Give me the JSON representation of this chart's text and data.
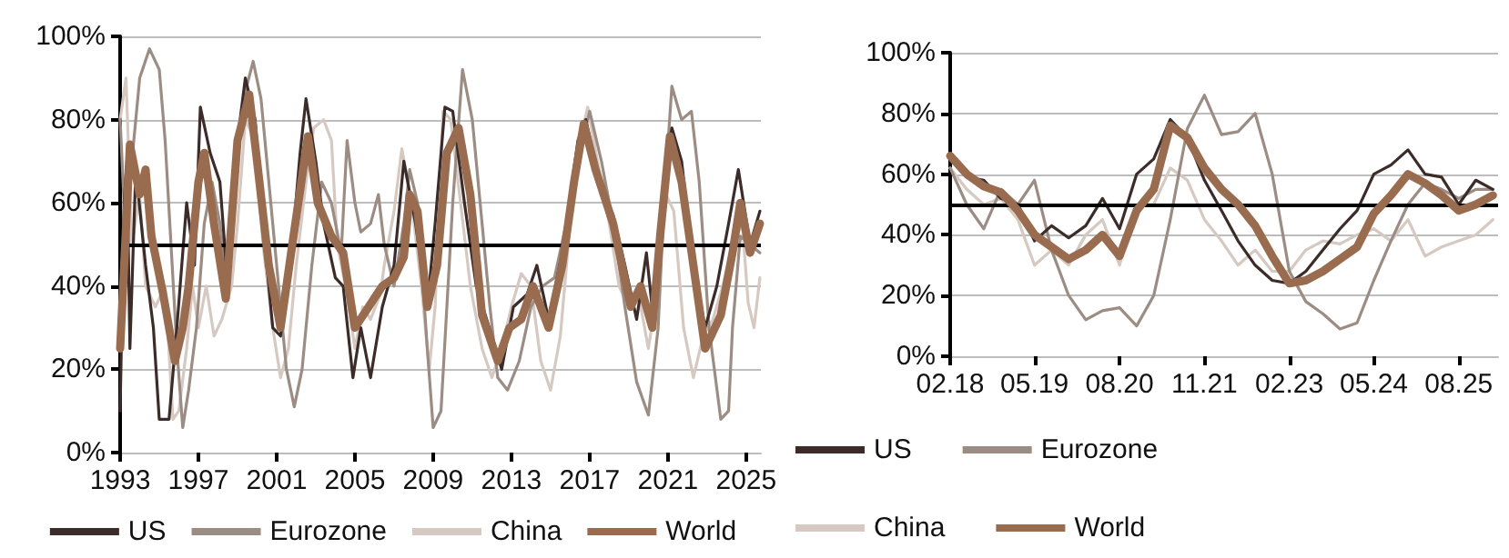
{
  "chart_data": [
    {
      "type": "line",
      "xlim": [
        1993,
        2025.75
      ],
      "xticks": [
        1993,
        1997,
        2001,
        2005,
        2009,
        2013,
        2017,
        2021,
        2025
      ],
      "ylim": [
        0,
        100
      ],
      "yticks": [
        {
          "value": 0,
          "label": "0%"
        },
        {
          "value": 20,
          "label": "20%"
        },
        {
          "value": 40,
          "label": "40%"
        },
        {
          "value": 60,
          "label": "60%"
        },
        {
          "value": 80,
          "label": "80%"
        },
        {
          "value": 100,
          "label": "100%"
        }
      ],
      "grid": "y",
      "legend": "bottom",
      "marker": "none",
      "line_style": "solid",
      "ref_lines": [
        {
          "axis": "y",
          "value": 50,
          "color": "#000000"
        }
      ],
      "series": [
        {
          "name": "US",
          "color": "#3b2c2a",
          "x": [
            1993.0,
            1993.2,
            1993.35,
            1993.5,
            1993.8,
            1994.3,
            1994.7,
            1995.0,
            1995.5,
            1995.9,
            1996.4,
            1996.8,
            1997.1,
            1997.6,
            1998.1,
            1998.5,
            1999.0,
            1999.4,
            1999.9,
            2000.3,
            2000.8,
            2001.2,
            2001.7,
            2002.2,
            2002.5,
            2003.0,
            2003.4,
            2004.0,
            2004.4,
            2004.9,
            2005.3,
            2005.8,
            2006.4,
            2007.0,
            2007.5,
            2008.1,
            2008.7,
            2009.1,
            2009.6,
            2010.0,
            2010.6,
            2011.2,
            2012.0,
            2012.5,
            2013.1,
            2013.8,
            2014.3,
            2014.9,
            2015.6,
            2016.4,
            2016.8,
            2017.5,
            2018.2,
            2018.8,
            2019.4,
            2019.9,
            2020.3,
            2020.8,
            2021.2,
            2021.7,
            2022.3,
            2022.9,
            2023.5,
            2024.1,
            2024.6,
            2025.2,
            2025.7
          ],
          "values": [
            10,
            60,
            70,
            25,
            68,
            45,
            30,
            8,
            8,
            30,
            60,
            45,
            83,
            72,
            65,
            40,
            75,
            90,
            80,
            55,
            30,
            28,
            45,
            72,
            85,
            70,
            55,
            42,
            40,
            18,
            30,
            18,
            35,
            45,
            70,
            55,
            35,
            55,
            83,
            82,
            60,
            40,
            28,
            20,
            35,
            38,
            45,
            32,
            48,
            75,
            80,
            65,
            57,
            45,
            32,
            48,
            30,
            65,
            78,
            70,
            45,
            30,
            40,
            55,
            68,
            50,
            58
          ]
        },
        {
          "name": "Eurozone",
          "color": "#9b8c84",
          "x": [
            1993.0,
            1993.2,
            1993.6,
            1994.0,
            1994.5,
            1995.0,
            1995.3,
            1995.6,
            1995.9,
            1996.2,
            1996.5,
            1996.9,
            1997.3,
            1997.7,
            1998.1,
            1998.5,
            1998.9,
            1999.3,
            1999.8,
            2000.2,
            2000.7,
            2001.1,
            2001.5,
            2001.9,
            2002.3,
            2002.8,
            2003.3,
            2003.8,
            2004.3,
            2004.6,
            2005.0,
            2005.3,
            2005.8,
            2006.2,
            2006.5,
            2007.0,
            2007.5,
            2007.8,
            2008.2,
            2008.7,
            2009.0,
            2009.4,
            2010.0,
            2010.5,
            2011.0,
            2011.4,
            2011.9,
            2012.3,
            2012.8,
            2013.4,
            2014.0,
            2014.6,
            2015.2,
            2015.8,
            2016.4,
            2017.0,
            2017.6,
            2018.2,
            2018.8,
            2019.4,
            2020.0,
            2020.5,
            2020.8,
            2021.2,
            2021.7,
            2022.2,
            2022.6,
            2023.1,
            2023.7,
            2024.1,
            2024.3,
            2024.7,
            2025.2,
            2025.7
          ],
          "values": [
            80,
            60,
            70,
            90,
            97,
            92,
            75,
            50,
            25,
            6,
            15,
            30,
            55,
            65,
            55,
            40,
            65,
            85,
            94,
            85,
            60,
            40,
            20,
            11,
            20,
            45,
            65,
            60,
            48,
            75,
            60,
            53,
            55,
            62,
            50,
            40,
            55,
            68,
            60,
            25,
            6,
            10,
            60,
            92,
            80,
            60,
            35,
            18,
            15,
            22,
            35,
            40,
            42,
            55,
            70,
            82,
            70,
            55,
            35,
            17,
            9,
            30,
            60,
            88,
            80,
            82,
            65,
            30,
            8,
            10,
            30,
            52,
            50,
            48
          ]
        },
        {
          "name": "China",
          "color": "#d5c9c1",
          "x": [
            1993.0,
            1993.3,
            1993.6,
            1994.0,
            1994.3,
            1994.8,
            1995.3,
            1995.7,
            1996.0,
            1996.4,
            1996.7,
            1997.0,
            1997.4,
            1997.8,
            1998.2,
            1998.7,
            1999.0,
            1999.4,
            1999.9,
            2000.3,
            2000.8,
            2001.2,
            2001.6,
            2002.0,
            2002.5,
            2002.9,
            2003.4,
            2003.8,
            2004.1,
            2004.6,
            2005.0,
            2005.4,
            2005.8,
            2006.3,
            2006.5,
            2007.0,
            2007.4,
            2007.9,
            2008.4,
            2008.8,
            2009.1,
            2009.5,
            2009.9,
            2010.4,
            2010.9,
            2011.5,
            2012.0,
            2012.5,
            2013.0,
            2013.5,
            2014.0,
            2014.5,
            2015.0,
            2015.5,
            2016.0,
            2016.5,
            2016.9,
            2017.4,
            2018.0,
            2018.5,
            2019.0,
            2019.5,
            2020.0,
            2020.5,
            2020.9,
            2021.3,
            2021.8,
            2022.3,
            2022.8,
            2023.3,
            2023.8,
            2024.3,
            2024.8,
            2025.1,
            2025.4,
            2025.7
          ],
          "values": [
            80,
            90,
            50,
            62,
            40,
            35,
            40,
            8,
            10,
            25,
            40,
            30,
            40,
            28,
            32,
            40,
            55,
            80,
            75,
            50,
            30,
            18,
            25,
            45,
            65,
            78,
            80,
            75,
            50,
            38,
            25,
            35,
            32,
            38,
            45,
            58,
            73,
            60,
            40,
            20,
            35,
            82,
            80,
            60,
            40,
            25,
            18,
            25,
            35,
            43,
            40,
            22,
            15,
            28,
            55,
            75,
            83,
            70,
            55,
            40,
            35,
            38,
            25,
            40,
            62,
            58,
            30,
            18,
            28,
            32,
            40,
            50,
            55,
            36,
            30,
            42
          ]
        },
        {
          "name": "World",
          "color": "#996b4f",
          "x": [
            1993.0,
            1993.36,
            1993.5,
            1994.0,
            1994.3,
            1994.6,
            1995.2,
            1995.8,
            1996.2,
            1996.5,
            1997.0,
            1997.3,
            1997.8,
            1998.4,
            1999.0,
            1999.6,
            2000.0,
            2000.6,
            2001.2,
            2001.8,
            2002.6,
            2003.1,
            2003.8,
            2004.4,
            2005.0,
            2005.7,
            2006.4,
            2007.0,
            2007.5,
            2007.8,
            2008.2,
            2008.7,
            2009.2,
            2009.7,
            2010.3,
            2010.9,
            2011.5,
            2012.3,
            2012.9,
            2013.5,
            2014.1,
            2014.9,
            2015.6,
            2016.2,
            2016.7,
            2017.3,
            2018.2,
            2019.1,
            2019.6,
            2020.2,
            2020.6,
            2021.1,
            2021.7,
            2022.3,
            2022.9,
            2023.7,
            2024.3,
            2024.7,
            2025.2,
            2025.7
          ],
          "values": [
            25,
            60,
            74,
            62,
            68,
            52,
            38,
            22,
            30,
            40,
            65,
            72,
            55,
            37,
            75,
            86,
            70,
            45,
            30,
            50,
            76,
            60,
            52,
            48,
            30,
            35,
            40,
            42,
            47,
            62,
            58,
            35,
            45,
            72,
            78,
            62,
            33,
            22,
            30,
            32,
            40,
            30,
            45,
            65,
            79,
            68,
            55,
            35,
            40,
            30,
            52,
            76,
            65,
            45,
            25,
            33,
            48,
            60,
            48,
            55
          ]
        }
      ]
    },
    {
      "type": "line",
      "xlim": [
        "2018-02",
        "2026-03"
      ],
      "xticks": [
        {
          "value": "2018-02",
          "label": "02.18"
        },
        {
          "value": "2019-05",
          "label": "05.19"
        },
        {
          "value": "2020-08",
          "label": "08.20"
        },
        {
          "value": "2021-11",
          "label": "11.21"
        },
        {
          "value": "2023-02",
          "label": "02.23"
        },
        {
          "value": "2024-05",
          "label": "05.24"
        },
        {
          "value": "2025-08",
          "label": "08.25"
        }
      ],
      "ylim": [
        0,
        100
      ],
      "yticks": [
        {
          "value": 0,
          "label": "0%"
        },
        {
          "value": 20,
          "label": "20%"
        },
        {
          "value": 40,
          "label": "40%"
        },
        {
          "value": 60,
          "label": "60%"
        },
        {
          "value": 80,
          "label": "80%"
        },
        {
          "value": 100,
          "label": "100%"
        }
      ],
      "grid": "y",
      "legend": "bottom",
      "marker": "none",
      "line_style": "solid",
      "ref_lines": [
        {
          "axis": "y",
          "value": 50,
          "color": "#000000"
        }
      ],
      "x": [
        "2018-02",
        "2018-05",
        "2018-08",
        "2018-11",
        "2019-02",
        "2019-05",
        "2019-08",
        "2019-11",
        "2020-02",
        "2020-05",
        "2020-08",
        "2020-11",
        "2021-02",
        "2021-05",
        "2021-08",
        "2021-11",
        "2022-02",
        "2022-05",
        "2022-08",
        "2022-11",
        "2023-02",
        "2023-05",
        "2023-08",
        "2023-11",
        "2024-02",
        "2024-05",
        "2024-08",
        "2024-11",
        "2025-02",
        "2025-05",
        "2025-08",
        "2025-11",
        "2026-02"
      ],
      "series": [
        {
          "name": "US",
          "color": "#3b2c2a",
          "values": [
            65,
            59,
            58,
            52,
            50,
            38,
            43,
            39,
            43,
            52,
            42,
            60,
            65,
            78,
            72,
            58,
            48,
            38,
            30,
            25,
            24,
            28,
            35,
            42,
            48,
            60,
            63,
            68,
            60,
            59,
            50,
            58,
            55
          ]
        },
        {
          "name": "Eurozone",
          "color": "#9b8c84",
          "values": [
            62,
            50,
            42,
            55,
            50,
            58,
            35,
            20,
            12,
            15,
            16,
            10,
            20,
            45,
            75,
            86,
            73,
            74,
            80,
            60,
            28,
            18,
            14,
            9,
            11,
            25,
            38,
            50,
            57,
            55,
            52,
            55,
            55
          ]
        },
        {
          "name": "China",
          "color": "#d5c9c1",
          "values": [
            62,
            55,
            50,
            52,
            45,
            30,
            35,
            30,
            40,
            45,
            30,
            50,
            50,
            62,
            58,
            45,
            38,
            30,
            35,
            28,
            28,
            35,
            38,
            37,
            40,
            42,
            38,
            45,
            33,
            36,
            38,
            40,
            45
          ]
        },
        {
          "name": "World",
          "color": "#996b4f",
          "values": [
            66,
            60,
            56,
            54,
            48,
            40,
            36,
            32,
            35,
            40,
            33,
            48,
            55,
            76,
            72,
            62,
            55,
            50,
            43,
            33,
            24,
            25,
            28,
            32,
            36,
            47,
            53,
            60,
            57,
            53,
            48,
            50,
            53
          ]
        }
      ]
    }
  ]
}
